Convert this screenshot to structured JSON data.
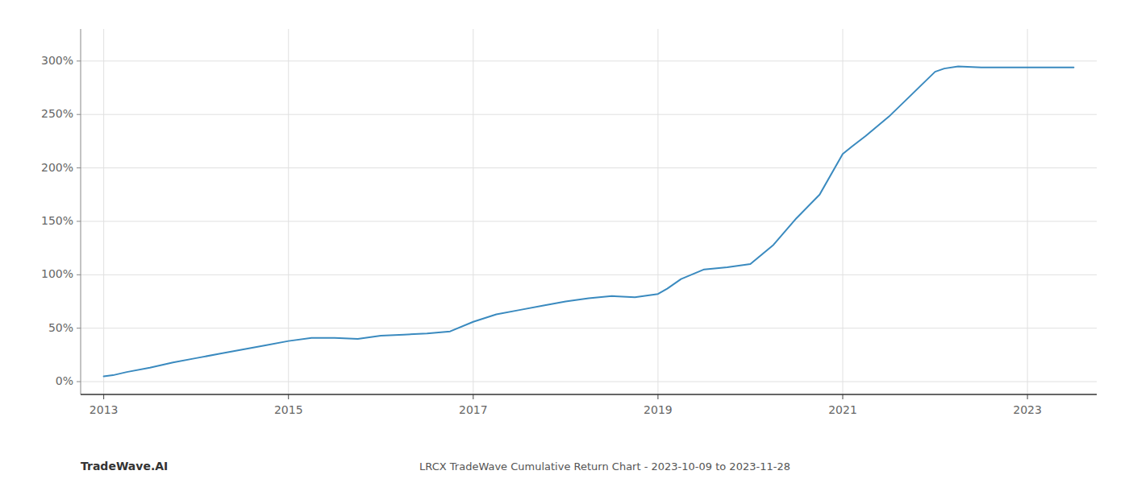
{
  "chart_data": {
    "type": "line",
    "title": "LRCX TradeWave Cumulative Return Chart - 2023-10-09 to 2023-11-28",
    "annotations": [
      "TradeWave.AI"
    ],
    "x": [
      2013.0,
      2013.1,
      2013.25,
      2013.5,
      2013.75,
      2014.0,
      2014.25,
      2014.5,
      2014.75,
      2015.0,
      2015.25,
      2015.5,
      2015.75,
      2016.0,
      2016.25,
      2016.5,
      2016.75,
      2017.0,
      2017.25,
      2017.5,
      2017.75,
      2018.0,
      2018.25,
      2018.5,
      2018.75,
      2019.0,
      2019.1,
      2019.25,
      2019.5,
      2019.75,
      2020.0,
      2020.25,
      2020.5,
      2020.75,
      2021.0,
      2021.1,
      2021.25,
      2021.5,
      2022.0,
      2022.1,
      2022.25,
      2022.5,
      2022.75,
      2023.0,
      2023.25,
      2023.5
    ],
    "values": [
      5,
      6,
      9,
      13,
      18,
      22,
      26,
      30,
      34,
      38,
      41,
      41,
      40,
      43,
      44,
      45,
      47,
      56,
      63,
      67,
      71,
      75,
      78,
      80,
      79,
      82,
      87,
      96,
      105,
      107,
      110,
      128,
      153,
      175,
      213,
      220,
      230,
      248,
      290,
      293,
      295,
      294,
      294,
      294,
      294,
      294
    ],
    "color": "#3a8abf",
    "xlim": [
      2012.75,
      2023.75
    ],
    "ylim": [
      -12,
      330
    ],
    "xticks": [
      2013,
      2015,
      2017,
      2019,
      2021,
      2023
    ],
    "yticks": [
      {
        "value": 0,
        "label": "0%"
      },
      {
        "value": 50,
        "label": "50%"
      },
      {
        "value": 100,
        "label": "100%"
      },
      {
        "value": 150,
        "label": "150%"
      },
      {
        "value": 200,
        "label": "200%"
      },
      {
        "value": 250,
        "label": "250%"
      },
      {
        "value": 300,
        "label": "300%"
      }
    ],
    "grid": true
  }
}
